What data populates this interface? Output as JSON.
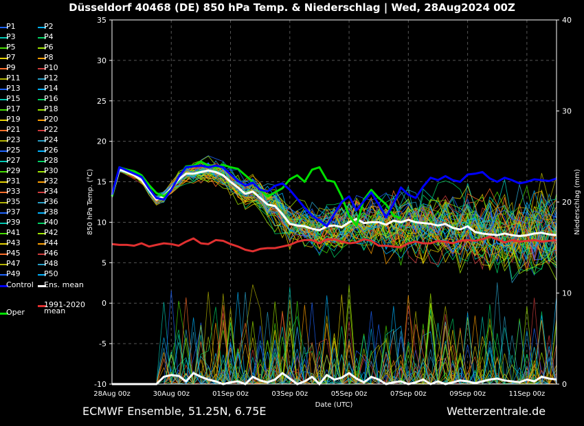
{
  "title": "Düsseldorf 40468 (DE)  850 hPa Temp. & Niederschlag | Wed, 28Aug2024 00Z",
  "footer": {
    "left": "ECMWF Ensemble, 51.25N, 6.75E",
    "right": "Wetterzentrale.de"
  },
  "legend": {
    "members": [
      "P1",
      "P2",
      "P3",
      "P4",
      "P5",
      "P6",
      "P7",
      "P8",
      "P9",
      "P10",
      "P11",
      "P12",
      "P13",
      "P14",
      "P15",
      "P16",
      "P17",
      "P18",
      "P19",
      "P20",
      "P21",
      "P22",
      "P23",
      "P24",
      "P25",
      "P26",
      "P27",
      "P28",
      "P29",
      "P30",
      "P31",
      "P32",
      "P33",
      "P34",
      "P35",
      "P36",
      "P37",
      "P38",
      "P39",
      "P40",
      "P41",
      "P42",
      "P43",
      "P44",
      "P45",
      "P46",
      "P47",
      "P48",
      "P49",
      "P50"
    ],
    "control": "Control",
    "ens_mean": "Ens. mean",
    "climate_line1": "1991-2020",
    "climate_line2": "mean",
    "oper": "Oper"
  },
  "colors": {
    "control": "#0000ff",
    "ens_mean": "#ffffff",
    "climate": "#e03030",
    "oper": "#00e000",
    "member_palette": [
      "#1e64ff",
      "#00b4ff",
      "#00c8b4",
      "#00d264",
      "#46dc00",
      "#a0e600",
      "#e6d200",
      "#ffa000",
      "#ff6e28",
      "#d23c3c",
      "#b4b400",
      "#28a0c8"
    ]
  },
  "chart_data": {
    "type": "line",
    "xlabel": "Date (UTC)",
    "ylabel_left": "850 hPa Temp. (°C)",
    "ylabel_right": "Niederschlag (mm)",
    "x_ticks": [
      "28Aug 00z",
      "30Aug 00z",
      "01Sep 00z",
      "03Sep 00z",
      "05Sep 00z",
      "07Sep 00z",
      "09Sep 00z",
      "11Sep 00z"
    ],
    "x_range_hours": [
      0,
      360
    ],
    "y_left_ticks": [
      -10,
      -5,
      0,
      5,
      10,
      15,
      20,
      25,
      30,
      35
    ],
    "y_left_range": [
      -10,
      35
    ],
    "y_right_ticks": [
      0,
      10,
      20,
      30,
      40
    ],
    "y_right_range": [
      0,
      40
    ],
    "grid": true,
    "x_hours": [
      0,
      6,
      12,
      18,
      24,
      30,
      36,
      42,
      48,
      54,
      60,
      66,
      72,
      78,
      84,
      90,
      96,
      102,
      108,
      114,
      120,
      126,
      132,
      138,
      144,
      150,
      156,
      162,
      168,
      174,
      180,
      186,
      192,
      198,
      204,
      210,
      216,
      222,
      228,
      234,
      240,
      246,
      252,
      258,
      264,
      270,
      276,
      282,
      288,
      294,
      300,
      306,
      312,
      318,
      324,
      330,
      336,
      342,
      348,
      354,
      360
    ],
    "series": [
      {
        "name": "Ens. mean",
        "values": [
          13.2,
          16.5,
          16.2,
          15.8,
          15.2,
          14.0,
          12.8,
          13.2,
          14.2,
          15.3,
          16.0,
          16.0,
          16.2,
          16.4,
          16.2,
          15.8,
          15.0,
          14.3,
          13.5,
          13.8,
          13.0,
          12.2,
          12.0,
          11.0,
          9.8,
          9.6,
          9.5,
          9.2,
          9.0,
          9.5,
          9.6,
          9.4,
          10.0,
          10.4,
          9.9,
          10.0,
          10.0,
          9.7,
          10.2,
          10.0,
          10.3,
          10.0,
          9.9,
          9.8,
          9.6,
          9.8,
          9.3,
          9.1,
          9.5,
          8.8,
          8.6,
          8.5,
          8.4,
          8.6,
          8.4,
          8.3,
          8.4,
          8.6,
          8.7,
          8.5,
          8.4
        ]
      },
      {
        "name": "Control",
        "values": [
          13.4,
          16.8,
          16.4,
          16.0,
          15.6,
          14.2,
          13.0,
          12.8,
          14.0,
          15.6,
          16.8,
          16.9,
          17.0,
          16.8,
          17.0,
          16.8,
          15.9,
          15.1,
          14.5,
          14.9,
          14.0,
          13.8,
          14.5,
          14.8,
          14.0,
          12.9,
          11.8,
          10.8,
          10.2,
          9.5,
          11.0,
          12.5,
          13.2,
          11.5,
          12.6,
          13.7,
          12.2,
          10.6,
          12.3,
          14.3,
          13.4,
          13.0,
          14.4,
          15.5,
          15.2,
          15.7,
          15.2,
          15.0,
          15.9,
          16.0,
          16.2,
          15.4,
          15.0,
          15.5,
          15.2,
          14.8,
          15.0,
          15.3,
          15.2,
          15.1,
          15.4
        ]
      },
      {
        "name": "Oper",
        "values": [
          13.2,
          16.8,
          16.5,
          16.3,
          15.8,
          14.6,
          13.6,
          13.2,
          14.0,
          15.6,
          16.9,
          17.0,
          17.5,
          17.0,
          16.8,
          17.1,
          16.8,
          16.6,
          15.8,
          15.0,
          14.0,
          13.2,
          13.7,
          14.2,
          15.3,
          15.8,
          15.0,
          16.5,
          16.8,
          15.2,
          15.0,
          13.2,
          10.8,
          9.6,
          12.8,
          14.0,
          13.0,
          12.2,
          10.8,
          10.5
        ]
      },
      {
        "name": "1991-2020 mean",
        "values": [
          7.3,
          7.2,
          7.2,
          7.1,
          7.4,
          7.0,
          7.2,
          7.4,
          7.3,
          7.1,
          7.6,
          8.0,
          7.4,
          7.3,
          7.8,
          7.7,
          7.3,
          7.0,
          6.6,
          6.4,
          6.7,
          6.8,
          6.8,
          7.0,
          7.2,
          7.6,
          7.8,
          7.8,
          7.4,
          7.9,
          7.9,
          7.6,
          7.4,
          7.5,
          7.9,
          7.7,
          7.1,
          7.1,
          7.0,
          6.9,
          7.4,
          7.6,
          7.4,
          7.4,
          7.7,
          7.6,
          7.4,
          7.7,
          7.8,
          7.7,
          7.9,
          8.2,
          7.9,
          7.5,
          7.8,
          7.6,
          7.7,
          7.8,
          7.6,
          7.7,
          7.8
        ]
      }
    ],
    "precip_mean_mm": [
      0,
      0,
      0,
      0,
      0,
      0,
      0,
      0.8,
      1.0,
      0.9,
      0.3,
      1.2,
      0.8,
      0.5,
      0.3,
      0,
      0.2,
      0.3,
      0,
      0.8,
      0.4,
      0.2,
      0.5,
      1.2,
      0.6,
      0,
      0.3,
      0.8,
      0,
      1.0,
      0.5,
      0.7,
      1.2,
      0.6,
      0.2,
      0.8,
      0.5,
      0,
      0.2,
      0.3,
      0,
      0.2,
      0.5,
      0,
      0.3,
      0,
      0.2,
      0.4,
      0.3,
      0.1,
      0.3,
      0.5,
      0.6,
      0.4,
      0.3,
      0.2,
      0.5,
      0.3,
      0.8,
      0.6,
      0.5
    ]
  }
}
